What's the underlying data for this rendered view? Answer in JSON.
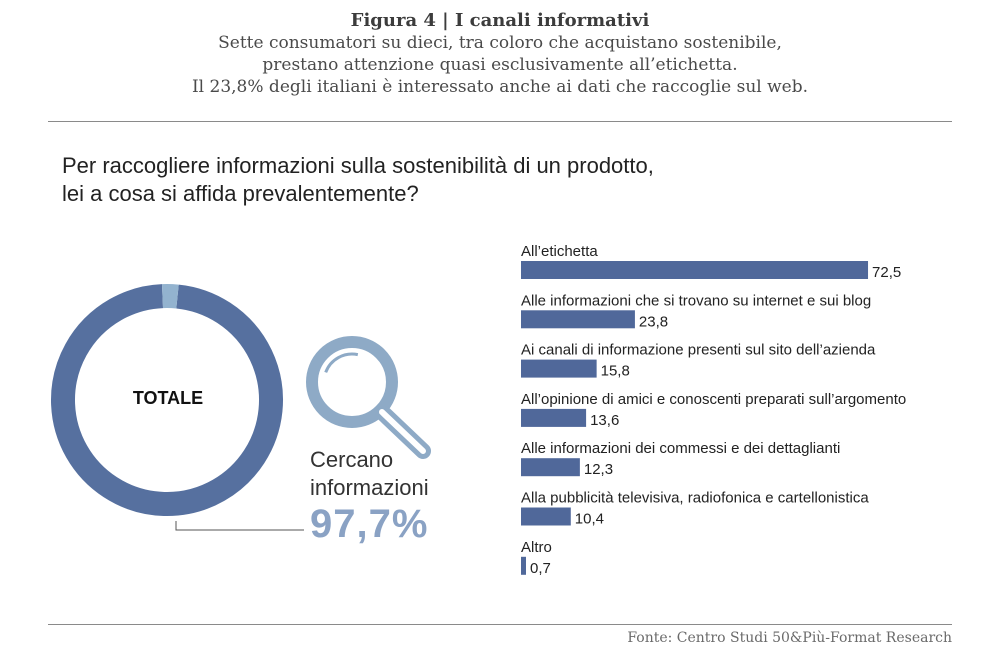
{
  "header": {
    "title": "Figura 4 | I canali informativi",
    "subtitle_lines": [
      "Sette consumatori su dieci, tra coloro che acquistano sostenibile,",
      "prestano attenzione quasi esclusivamente all’etichetta.",
      "Il 23,8% degli italiani è interessato anche ai dati che raccoglie sul web."
    ]
  },
  "question": {
    "line1": "Per raccogliere informazioni sulla sostenibilità di un prodotto,",
    "line2": "lei a cosa si affida prevalentemente?"
  },
  "donut": {
    "center_label": "TOTALE",
    "callout_line1": "Cercano",
    "callout_line2": "informazioni",
    "callout_value": "97,7%"
  },
  "source": "Fonte: Centro Studi 50&Più-Format Research",
  "colors": {
    "bar": "#50689a",
    "donut_main": "#56709f",
    "donut_remainder": "#93b3cf",
    "magnifier": "#8eaac6"
  },
  "chart_data": [
    {
      "type": "pie",
      "title": "",
      "categories": [
        "Cercano informazioni",
        ""
      ],
      "values": [
        97.7,
        2.3
      ],
      "labels": [
        "TOTALE",
        "97,7%"
      ]
    },
    {
      "type": "bar",
      "orientation": "horizontal",
      "title": "",
      "categories": [
        "All’etichetta",
        "Alle informazioni che si trovano su internet e sui blog",
        "Ai canali di informazione presenti sul sito dell’azienda",
        "All’opinione di amici e conoscenti preparati sull’argomento",
        "Alle informazioni dei commessi e dei dettaglianti",
        "Alla pubblicità televisiva, radiofonica e cartellonistica",
        "Altro"
      ],
      "values": [
        72.5,
        23.8,
        15.8,
        13.6,
        12.3,
        10.4,
        0.7
      ],
      "value_labels": [
        "72,5",
        "23,8",
        "15,8",
        "13,6",
        "12,3",
        "10,4",
        "0,7"
      ],
      "xlim": [
        0,
        75
      ]
    }
  ]
}
